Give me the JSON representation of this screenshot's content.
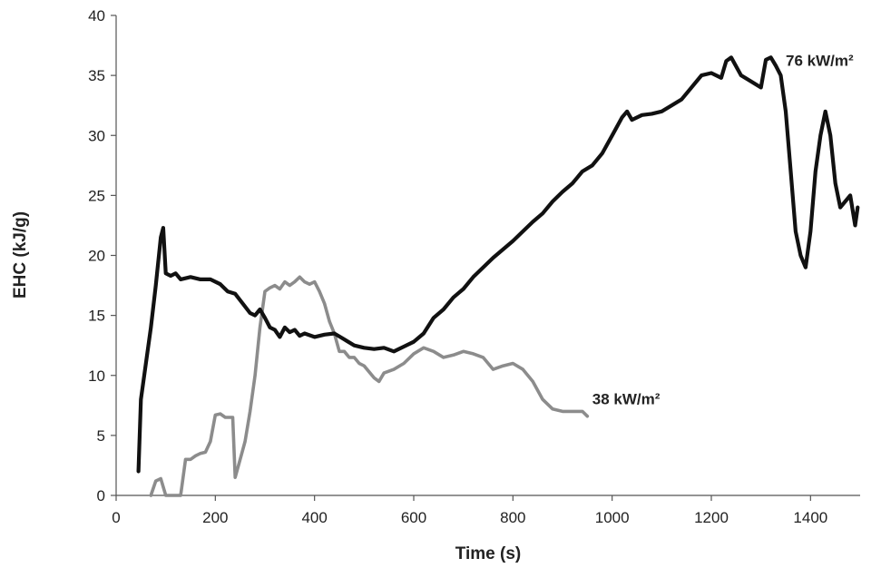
{
  "chart_data": {
    "type": "line",
    "title": "",
    "xlabel": "Time (s)",
    "ylabel": "EHC (kJ/g)",
    "xlim": [
      0,
      1500
    ],
    "ylim": [
      0,
      40
    ],
    "xticks": [
      0,
      200,
      400,
      600,
      800,
      1000,
      1200,
      1400
    ],
    "yticks": [
      0,
      5,
      10,
      15,
      20,
      25,
      30,
      35,
      40
    ],
    "grid": false,
    "legend": "none",
    "series": [
      {
        "name": "76 kW/m²",
        "color": "#111111",
        "points": [
          [
            45,
            2
          ],
          [
            50,
            8
          ],
          [
            60,
            11
          ],
          [
            70,
            14
          ],
          [
            80,
            17.5
          ],
          [
            90,
            21.5
          ],
          [
            95,
            22.3
          ],
          [
            100,
            18.5
          ],
          [
            110,
            18.3
          ],
          [
            120,
            18.5
          ],
          [
            130,
            18
          ],
          [
            150,
            18.2
          ],
          [
            170,
            18
          ],
          [
            190,
            18
          ],
          [
            210,
            17.6
          ],
          [
            225,
            17
          ],
          [
            240,
            16.8
          ],
          [
            255,
            16
          ],
          [
            270,
            15.2
          ],
          [
            280,
            15
          ],
          [
            290,
            15.5
          ],
          [
            300,
            14.8
          ],
          [
            310,
            14
          ],
          [
            320,
            13.8
          ],
          [
            330,
            13.2
          ],
          [
            340,
            14
          ],
          [
            350,
            13.6
          ],
          [
            360,
            13.8
          ],
          [
            370,
            13.3
          ],
          [
            380,
            13.5
          ],
          [
            400,
            13.2
          ],
          [
            420,
            13.4
          ],
          [
            440,
            13.5
          ],
          [
            460,
            13
          ],
          [
            480,
            12.5
          ],
          [
            500,
            12.3
          ],
          [
            520,
            12.2
          ],
          [
            540,
            12.3
          ],
          [
            560,
            12
          ],
          [
            580,
            12.4
          ],
          [
            600,
            12.8
          ],
          [
            620,
            13.5
          ],
          [
            640,
            14.8
          ],
          [
            660,
            15.5
          ],
          [
            680,
            16.5
          ],
          [
            700,
            17.2
          ],
          [
            720,
            18.2
          ],
          [
            740,
            19
          ],
          [
            760,
            19.8
          ],
          [
            780,
            20.5
          ],
          [
            800,
            21.2
          ],
          [
            820,
            22
          ],
          [
            840,
            22.8
          ],
          [
            860,
            23.5
          ],
          [
            880,
            24.5
          ],
          [
            900,
            25.3
          ],
          [
            920,
            26
          ],
          [
            940,
            27
          ],
          [
            960,
            27.5
          ],
          [
            980,
            28.5
          ],
          [
            1000,
            30
          ],
          [
            1020,
            31.5
          ],
          [
            1030,
            32
          ],
          [
            1040,
            31.3
          ],
          [
            1060,
            31.7
          ],
          [
            1080,
            31.8
          ],
          [
            1100,
            32
          ],
          [
            1120,
            32.5
          ],
          [
            1140,
            33
          ],
          [
            1160,
            34
          ],
          [
            1180,
            35
          ],
          [
            1200,
            35.2
          ],
          [
            1220,
            34.8
          ],
          [
            1230,
            36.2
          ],
          [
            1240,
            36.5
          ],
          [
            1260,
            35
          ],
          [
            1280,
            34.5
          ],
          [
            1300,
            34
          ],
          [
            1310,
            36.3
          ],
          [
            1320,
            36.5
          ],
          [
            1330,
            35.8
          ],
          [
            1340,
            35
          ],
          [
            1350,
            32
          ],
          [
            1360,
            27
          ],
          [
            1370,
            22
          ],
          [
            1380,
            20
          ],
          [
            1390,
            19
          ],
          [
            1400,
            22
          ],
          [
            1410,
            27
          ],
          [
            1420,
            30
          ],
          [
            1430,
            32
          ],
          [
            1440,
            30
          ],
          [
            1450,
            26
          ],
          [
            1460,
            24
          ],
          [
            1470,
            24.5
          ],
          [
            1480,
            25
          ],
          [
            1490,
            22.5
          ],
          [
            1495,
            24
          ]
        ]
      },
      {
        "name": "38 kW/m²",
        "color": "#8c8c8c",
        "points": [
          [
            70,
            0
          ],
          [
            80,
            1.2
          ],
          [
            90,
            1.4
          ],
          [
            100,
            0
          ],
          [
            110,
            0
          ],
          [
            130,
            0
          ],
          [
            140,
            3
          ],
          [
            150,
            3
          ],
          [
            160,
            3.3
          ],
          [
            170,
            3.5
          ],
          [
            180,
            3.6
          ],
          [
            190,
            4.5
          ],
          [
            200,
            6.7
          ],
          [
            210,
            6.8
          ],
          [
            220,
            6.5
          ],
          [
            235,
            6.5
          ],
          [
            240,
            1.5
          ],
          [
            250,
            3
          ],
          [
            260,
            4.5
          ],
          [
            270,
            7
          ],
          [
            280,
            10
          ],
          [
            290,
            14
          ],
          [
            300,
            17
          ],
          [
            310,
            17.3
          ],
          [
            320,
            17.5
          ],
          [
            330,
            17.2
          ],
          [
            340,
            17.8
          ],
          [
            350,
            17.5
          ],
          [
            360,
            17.8
          ],
          [
            370,
            18.2
          ],
          [
            380,
            17.8
          ],
          [
            390,
            17.6
          ],
          [
            400,
            17.8
          ],
          [
            410,
            17
          ],
          [
            420,
            16
          ],
          [
            430,
            14.5
          ],
          [
            440,
            13.5
          ],
          [
            450,
            12
          ],
          [
            460,
            12
          ],
          [
            470,
            11.5
          ],
          [
            480,
            11.5
          ],
          [
            490,
            11
          ],
          [
            500,
            10.8
          ],
          [
            510,
            10.3
          ],
          [
            520,
            9.8
          ],
          [
            530,
            9.5
          ],
          [
            540,
            10.2
          ],
          [
            560,
            10.5
          ],
          [
            580,
            11
          ],
          [
            600,
            11.8
          ],
          [
            620,
            12.3
          ],
          [
            640,
            12
          ],
          [
            660,
            11.5
          ],
          [
            680,
            11.7
          ],
          [
            700,
            12
          ],
          [
            720,
            11.8
          ],
          [
            740,
            11.5
          ],
          [
            760,
            10.5
          ],
          [
            780,
            10.8
          ],
          [
            800,
            11
          ],
          [
            820,
            10.5
          ],
          [
            840,
            9.5
          ],
          [
            860,
            8
          ],
          [
            880,
            7.2
          ],
          [
            900,
            7
          ],
          [
            920,
            7
          ],
          [
            940,
            7
          ],
          [
            950,
            6.6
          ]
        ]
      }
    ],
    "annotations": [
      {
        "text": "76 kW/m²",
        "x": 1350,
        "y": 35.8
      },
      {
        "text": "38 kW/m²",
        "x": 960,
        "y": 7.6
      }
    ]
  }
}
